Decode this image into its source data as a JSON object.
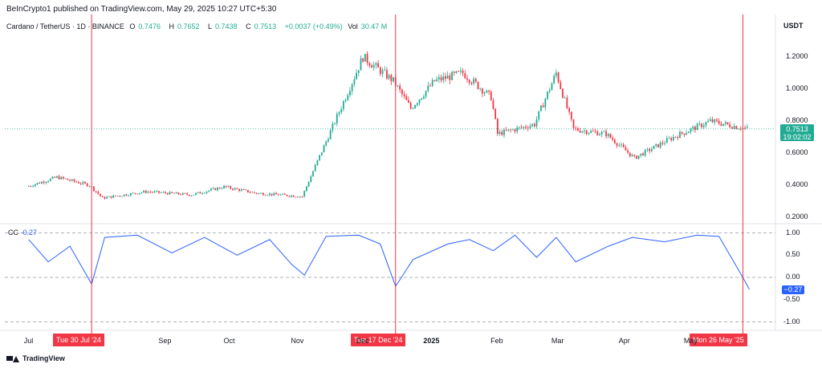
{
  "header": {
    "publisher": "BeInCrypto1 published on TradingView.com, May 29, 2025 10:27 UTC+5:30"
  },
  "symbol": {
    "name": "Cardano / TetherUS · 1D · BINANCE",
    "o_label": "O",
    "o": "0.7476",
    "h_label": "H",
    "h": "0.7652",
    "l_label": "L",
    "l": "0.7438",
    "c_label": "C",
    "c": "0.7513",
    "change": "+0.0037 (+0.49%)",
    "vol_label": "Vol",
    "vol": "30.47 M"
  },
  "currency": "USDT",
  "last_price": {
    "value": "0.7513",
    "countdown": "19:02:02"
  },
  "indicator": {
    "label": "CC",
    "value": "-0.27",
    "tag": "−0.27"
  },
  "markers": [
    {
      "label": "Tue 30 Jul '24"
    },
    {
      "label": "Tue 17 Dec '24"
    },
    {
      "label": "Mon 26 May '25"
    }
  ],
  "footer": {
    "brand": "TradingView"
  },
  "colors": {
    "up": "#22ab94",
    "down": "#f23645",
    "line": "#2962ff",
    "marker": "#f23645"
  },
  "chart_data": [
    {
      "type": "candlestick",
      "title": "Cardano / TetherUS · 1D · BINANCE",
      "y_ticks": [
        "1.2000",
        "1.0000",
        "0.8000",
        "0.6000",
        "0.4000",
        "0.2000"
      ],
      "ylim": [
        0.18,
        1.4
      ],
      "x_ticks": [
        "Jul",
        "Sep",
        "Oct",
        "Nov",
        "Dec",
        "2025",
        "Feb",
        "Mar",
        "Apr",
        "May"
      ],
      "series_close_approx": [
        {
          "x": "2024-07-01",
          "y": 0.39
        },
        {
          "x": "2024-07-15",
          "y": 0.45
        },
        {
          "x": "2024-07-30",
          "y": 0.4
        },
        {
          "x": "2024-08-05",
          "y": 0.32
        },
        {
          "x": "2024-08-25",
          "y": 0.36
        },
        {
          "x": "2024-09-15",
          "y": 0.34
        },
        {
          "x": "2024-09-30",
          "y": 0.39
        },
        {
          "x": "2024-10-15",
          "y": 0.35
        },
        {
          "x": "2024-11-05",
          "y": 0.33
        },
        {
          "x": "2024-11-12",
          "y": 0.55
        },
        {
          "x": "2024-11-25",
          "y": 0.95
        },
        {
          "x": "2024-12-03",
          "y": 1.2
        },
        {
          "x": "2024-12-17",
          "y": 1.05
        },
        {
          "x": "2024-12-25",
          "y": 0.88
        },
        {
          "x": "2025-01-05",
          "y": 1.05
        },
        {
          "x": "2025-01-18",
          "y": 1.1
        },
        {
          "x": "2025-01-31",
          "y": 0.95
        },
        {
          "x": "2025-02-03",
          "y": 0.72
        },
        {
          "x": "2025-02-20",
          "y": 0.78
        },
        {
          "x": "2025-03-02",
          "y": 1.1
        },
        {
          "x": "2025-03-10",
          "y": 0.75
        },
        {
          "x": "2025-03-25",
          "y": 0.72
        },
        {
          "x": "2025-04-07",
          "y": 0.57
        },
        {
          "x": "2025-04-25",
          "y": 0.7
        },
        {
          "x": "2025-05-12",
          "y": 0.8
        },
        {
          "x": "2025-05-29",
          "y": 0.7513
        }
      ]
    },
    {
      "type": "line",
      "title": "CC",
      "y_ticks": [
        "1.00",
        "0.50",
        "0.00",
        "-0.50",
        "-1.00"
      ],
      "ylim": [
        -1.0,
        1.0
      ],
      "x": [
        "2024-07-01",
        "2024-07-10",
        "2024-07-20",
        "2024-07-30",
        "2024-08-05",
        "2024-08-20",
        "2024-09-05",
        "2024-09-20",
        "2024-10-05",
        "2024-10-20",
        "2024-10-30",
        "2024-11-05",
        "2024-11-15",
        "2024-11-30",
        "2024-12-10",
        "2024-12-17",
        "2024-12-25",
        "2025-01-10",
        "2025-01-20",
        "2025-01-31",
        "2025-02-10",
        "2025-02-20",
        "2025-03-01",
        "2025-03-10",
        "2025-03-25",
        "2025-04-05",
        "2025-04-20",
        "2025-05-05",
        "2025-05-15",
        "2025-05-26",
        "2025-05-29"
      ],
      "values": [
        0.85,
        0.35,
        0.7,
        -0.15,
        0.9,
        0.95,
        0.55,
        0.9,
        0.5,
        0.85,
        0.3,
        0.05,
        0.92,
        0.95,
        0.75,
        -0.2,
        0.4,
        0.75,
        0.85,
        0.6,
        0.95,
        0.45,
        0.9,
        0.35,
        0.7,
        0.9,
        0.8,
        0.95,
        0.92,
        0.0,
        -0.27
      ]
    }
  ]
}
